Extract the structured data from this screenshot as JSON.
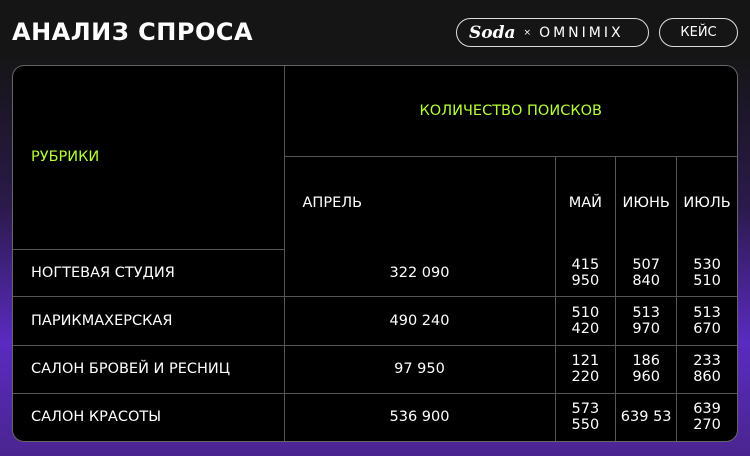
{
  "header": {
    "title": "АНАЛИЗ СПРОСА",
    "brand_soda": "Soda",
    "brand_x": "×",
    "brand_omnimix": "OMNIMIX",
    "case_label": "КЕЙС"
  },
  "colors": {
    "accent": "#b5ff3a",
    "purple": "#5a2bc0"
  },
  "table": {
    "rubric_header": "РУБРИКИ",
    "group_header": "КОЛИЧЕСТВО ПОИСКОВ",
    "months": [
      "АПРЕЛЬ",
      "МАЙ",
      "ИЮНЬ",
      "ИЮЛЬ"
    ],
    "rows": [
      {
        "name": "НОГТЕВАЯ СТУДИЯ",
        "values": [
          "322 090",
          "415 950",
          "507 840",
          "530 510"
        ]
      },
      {
        "name": "ПАРИКМАХЕРСКАЯ",
        "values": [
          "490 240",
          "510 420",
          "513 970",
          "513 670"
        ]
      },
      {
        "name": "САЛОН БРОВЕЙ И РЕСНИЦ",
        "values": [
          "97 950",
          "121 220",
          "186 960",
          "233 860"
        ]
      },
      {
        "name": "САЛОН КРАСОТЫ",
        "values": [
          "536 900",
          "573 550",
          "639 53",
          "639 270"
        ]
      }
    ]
  }
}
